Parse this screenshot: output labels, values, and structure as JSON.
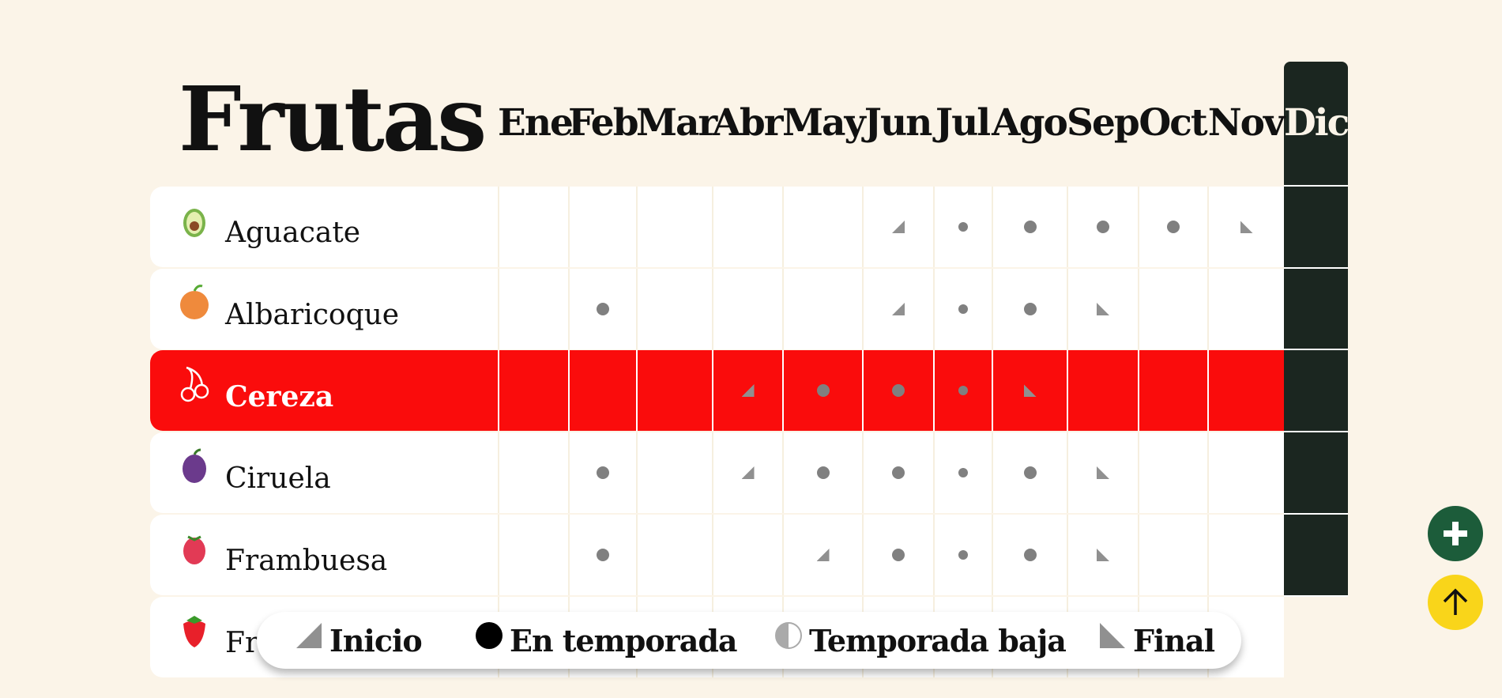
{
  "page": {
    "title": "Frutas"
  },
  "months": [
    "Ene",
    "Feb",
    "Mar",
    "Abr",
    "May",
    "Jun",
    "Jul",
    "Ago",
    "Sep",
    "Oct",
    "Nov",
    "Dic"
  ],
  "current_month": "Dic",
  "fruits": [
    {
      "name": "Aguacate",
      "icon": "avocado-icon",
      "highlighted": false,
      "season": [
        "",
        "",
        "",
        "",
        "",
        "start",
        "small",
        "full",
        "full",
        "full",
        "end",
        ""
      ]
    },
    {
      "name": "Albaricoque",
      "icon": "apricot-icon",
      "highlighted": false,
      "season": [
        "",
        "full",
        "",
        "",
        "",
        "start",
        "small",
        "full",
        "end",
        "",
        "",
        ""
      ]
    },
    {
      "name": "Cereza",
      "icon": "cherry-icon",
      "highlighted": true,
      "season": [
        "",
        "",
        "",
        "start",
        "full",
        "full",
        "small",
        "end",
        "",
        "",
        "",
        ""
      ]
    },
    {
      "name": "Ciruela",
      "icon": "plum-icon",
      "highlighted": false,
      "season": [
        "",
        "full",
        "",
        "start",
        "full",
        "full",
        "small",
        "full",
        "end",
        "",
        "",
        ""
      ]
    },
    {
      "name": "Frambuesa",
      "icon": "raspberry-icon",
      "highlighted": false,
      "season": [
        "",
        "full",
        "",
        "",
        "start",
        "full",
        "small",
        "full",
        "end",
        "",
        "",
        ""
      ]
    },
    {
      "name": "Fresa",
      "icon": "strawberry-icon",
      "highlighted": false,
      "season": [
        "",
        "",
        "",
        "",
        "",
        "",
        "",
        "",
        "",
        "",
        "",
        ""
      ]
    }
  ],
  "legend": {
    "start": "Inicio",
    "in_season": "En temporada",
    "low_season": "Temporada baja",
    "end": "Final"
  },
  "colors": {
    "background": "#fbf4e8",
    "highlight_row": "#fa0c0c",
    "current_month_column": "#1b2620",
    "add_button": "#1c5c3a",
    "scroll_top_button": "#f9d51a",
    "marker": "#808080"
  },
  "buttons": {
    "add_icon": "plus-icon",
    "scroll_top_icon": "arrow-up-icon"
  }
}
